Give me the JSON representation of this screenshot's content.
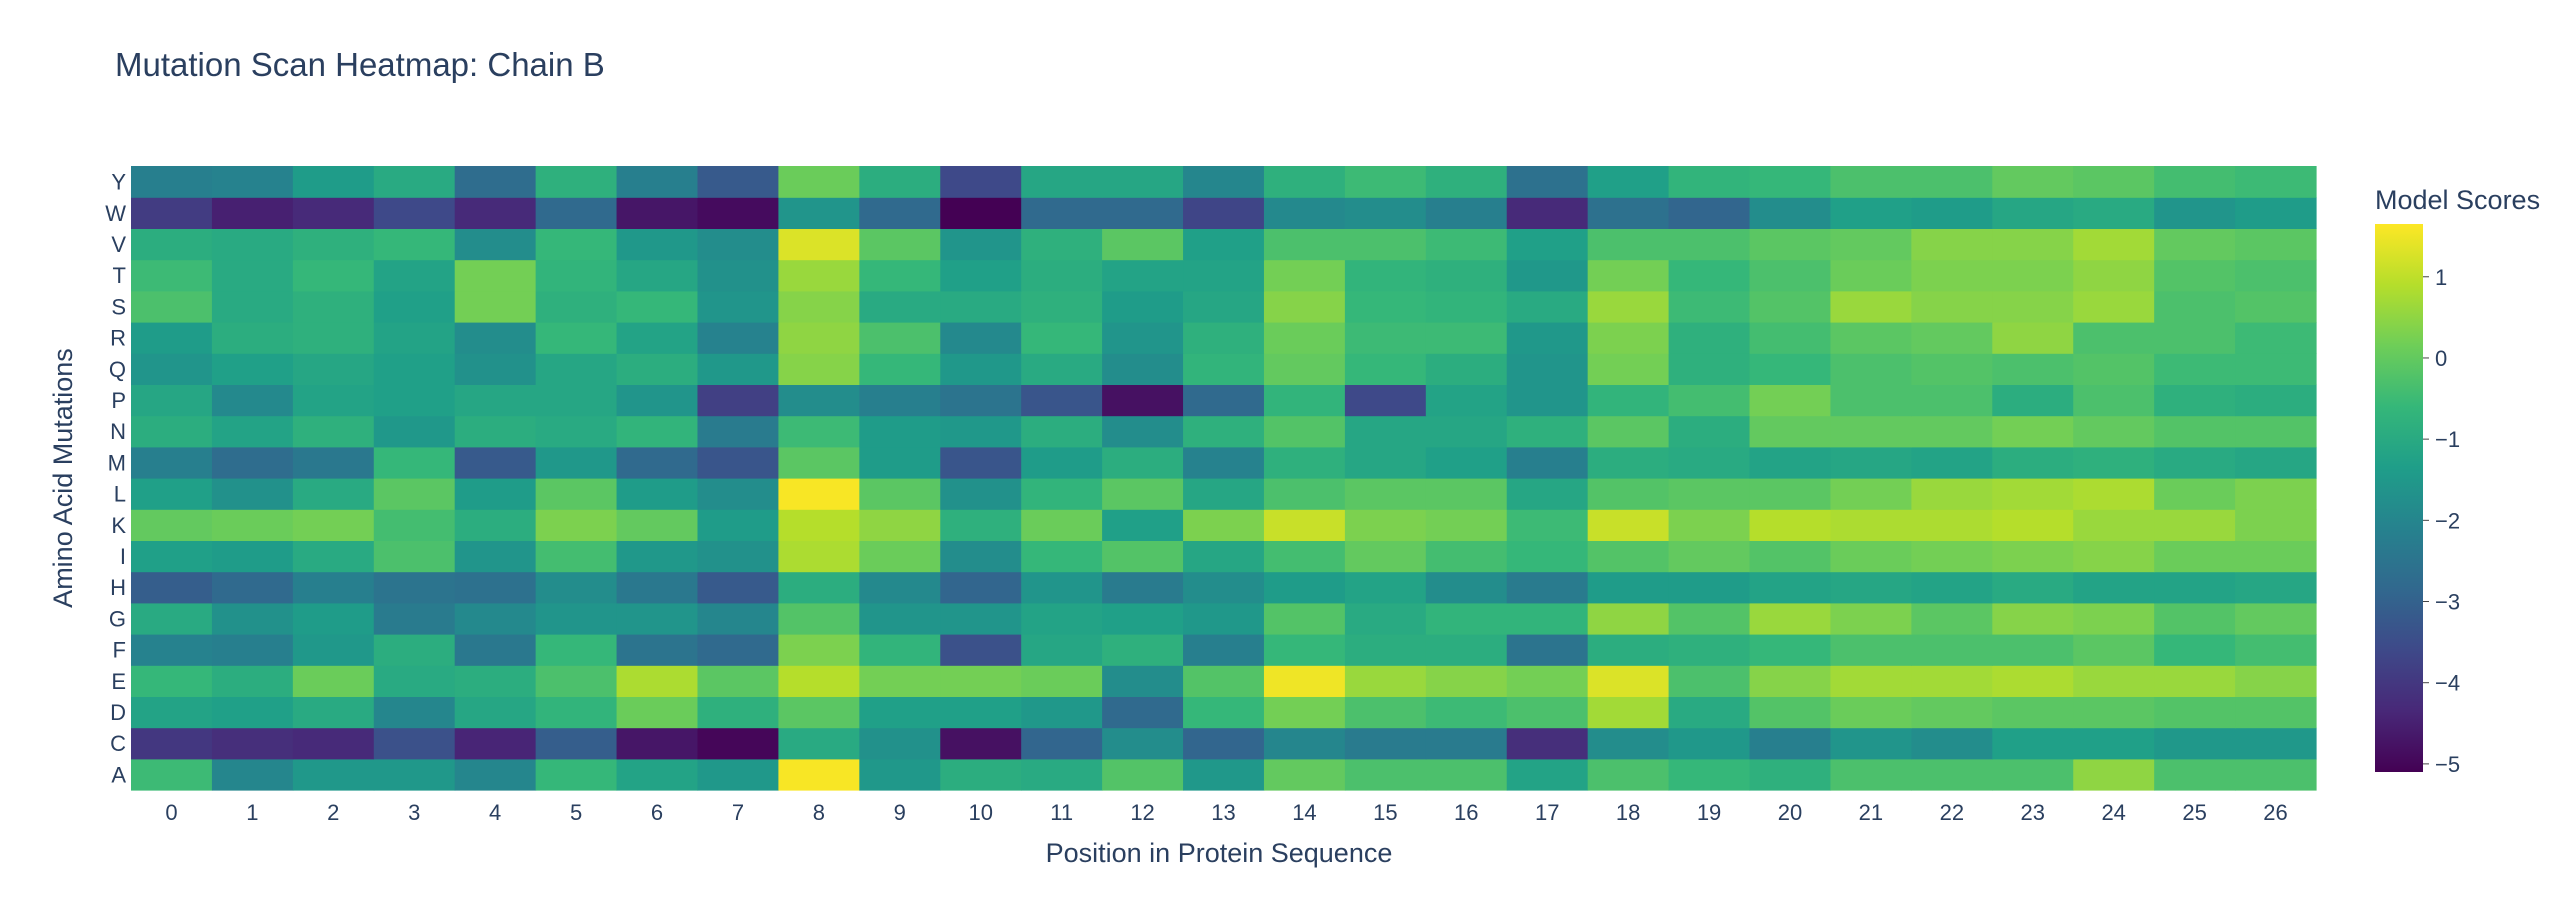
{
  "chart_data": {
    "type": "heatmap",
    "title": "Mutation Scan Heatmap: Chain B",
    "xlabel": "Position in Protein Sequence",
    "ylabel": "Amino Acid Mutations",
    "x": [
      "0",
      "1",
      "2",
      "3",
      "4",
      "5",
      "6",
      "7",
      "8",
      "9",
      "10",
      "11",
      "12",
      "13",
      "14",
      "15",
      "16",
      "17",
      "18",
      "19",
      "20",
      "21",
      "22",
      "23",
      "24",
      "25",
      "26"
    ],
    "y": [
      "A",
      "C",
      "D",
      "E",
      "F",
      "G",
      "H",
      "I",
      "K",
      "L",
      "M",
      "N",
      "P",
      "Q",
      "R",
      "S",
      "T",
      "V",
      "W",
      "Y"
    ],
    "z": [
      [
        -0.5,
        -2.0,
        -1.5,
        -1.5,
        -2.0,
        -0.6,
        -1.2,
        -1.5,
        1.6,
        -1.5,
        -0.9,
        -1.0,
        -0.2,
        -1.5,
        0.0,
        -0.3,
        -0.3,
        -1.2,
        -0.3,
        -0.6,
        -0.8,
        -0.3,
        -0.3,
        -0.3,
        0.5,
        -0.3,
        -0.3
      ],
      [
        -4.0,
        -4.2,
        -4.3,
        -3.4,
        -4.4,
        -3.1,
        -4.7,
        -5.0,
        -1.0,
        -1.7,
        -4.8,
        -2.9,
        -1.8,
        -2.9,
        -2.0,
        -2.3,
        -2.3,
        -4.2,
        -1.8,
        -1.5,
        -2.2,
        -1.6,
        -1.8,
        -1.3,
        -1.3,
        -1.5,
        -1.5
      ],
      [
        -1.2,
        -1.3,
        -1.0,
        -2.0,
        -1.1,
        -0.7,
        0.1,
        -0.8,
        -0.1,
        -1.3,
        -1.3,
        -1.5,
        -2.8,
        -0.6,
        0.2,
        -0.3,
        -0.5,
        -0.3,
        0.7,
        -1.0,
        -0.2,
        0.1,
        0.0,
        -0.1,
        -0.1,
        -0.2,
        -0.2
      ],
      [
        -0.6,
        -0.9,
        0.1,
        -1.0,
        -0.9,
        -0.3,
        0.8,
        -0.1,
        0.9,
        0.2,
        0.2,
        0.1,
        -1.8,
        -0.2,
        1.5,
        0.6,
        0.4,
        0.2,
        1.3,
        -0.3,
        0.4,
        0.7,
        0.7,
        0.8,
        0.6,
        0.6,
        0.4
      ],
      [
        -2.1,
        -2.2,
        -1.5,
        -0.9,
        -2.4,
        -0.6,
        -2.5,
        -2.8,
        0.3,
        -0.7,
        -3.4,
        -1.1,
        -0.8,
        -2.2,
        -0.6,
        -0.9,
        -0.9,
        -2.5,
        -0.9,
        -0.8,
        -0.6,
        -0.3,
        -0.3,
        -0.3,
        -0.1,
        -0.6,
        -0.4
      ],
      [
        -1.0,
        -1.7,
        -1.4,
        -2.3,
        -1.9,
        -1.6,
        -1.6,
        -2.0,
        -0.2,
        -1.6,
        -1.6,
        -1.2,
        -1.3,
        -1.5,
        -0.2,
        -1.0,
        -0.7,
        -0.7,
        0.5,
        -0.2,
        0.6,
        0.3,
        -0.1,
        0.4,
        0.3,
        -0.2,
        0.0
      ],
      [
        -3.1,
        -2.8,
        -2.2,
        -2.5,
        -2.6,
        -1.8,
        -2.4,
        -3.2,
        -0.9,
        -1.9,
        -2.9,
        -1.6,
        -2.3,
        -1.8,
        -1.4,
        -1.2,
        -1.8,
        -2.3,
        -1.4,
        -1.4,
        -1.2,
        -1.1,
        -1.2,
        -1.0,
        -1.2,
        -1.2,
        -1.1
      ],
      [
        -1.3,
        -1.4,
        -1.0,
        -0.3,
        -1.6,
        -0.4,
        -1.5,
        -1.7,
        0.8,
        0.1,
        -1.8,
        -0.6,
        -0.2,
        -1.1,
        -0.4,
        0.0,
        -0.4,
        -0.6,
        -0.2,
        0.0,
        -0.2,
        0.1,
        0.2,
        0.3,
        0.4,
        0.1,
        0.1
      ],
      [
        0.0,
        0.1,
        0.2,
        -0.4,
        -0.9,
        0.3,
        0.0,
        -1.4,
        0.9,
        0.5,
        -0.8,
        0.1,
        -1.3,
        0.3,
        1.1,
        0.3,
        0.2,
        -0.5,
        1.1,
        0.3,
        0.9,
        0.8,
        0.8,
        0.9,
        0.6,
        0.6,
        0.3
      ],
      [
        -1.3,
        -1.7,
        -1.0,
        -0.1,
        -1.4,
        -0.1,
        -1.4,
        -1.8,
        1.6,
        -0.1,
        -1.7,
        -0.7,
        -0.1,
        -1.1,
        -0.3,
        -0.1,
        -0.1,
        -1.1,
        -0.2,
        -0.1,
        -0.1,
        0.2,
        0.6,
        0.7,
        0.8,
        0.1,
        0.3
      ],
      [
        -2.2,
        -2.7,
        -2.4,
        -0.6,
        -3.2,
        -1.5,
        -2.8,
        -3.3,
        -0.1,
        -1.4,
        -3.3,
        -1.4,
        -0.9,
        -2.1,
        -0.8,
        -1.1,
        -1.3,
        -2.2,
        -0.9,
        -1.0,
        -1.2,
        -1.1,
        -1.2,
        -0.9,
        -0.8,
        -1.0,
        -1.1
      ],
      [
        -0.9,
        -1.2,
        -0.8,
        -1.5,
        -0.9,
        -1.0,
        -0.7,
        -2.3,
        -0.5,
        -1.4,
        -1.5,
        -0.9,
        -1.8,
        -0.8,
        -0.2,
        -1.1,
        -1.1,
        -0.8,
        -0.1,
        -0.9,
        0.0,
        0.0,
        0.0,
        0.2,
        0.0,
        -0.2,
        -0.2
      ],
      [
        -1.1,
        -1.9,
        -1.2,
        -1.3,
        -1.1,
        -1.1,
        -1.6,
        -3.8,
        -1.8,
        -2.2,
        -2.5,
        -3.3,
        -4.8,
        -2.8,
        -0.7,
        -3.6,
        -1.2,
        -1.6,
        -0.7,
        -0.4,
        0.2,
        -0.3,
        -0.3,
        -0.9,
        -0.3,
        -0.8,
        -0.9
      ],
      [
        -1.6,
        -1.3,
        -1.1,
        -1.3,
        -1.7,
        -1.1,
        -0.9,
        -1.5,
        0.4,
        -0.6,
        -1.5,
        -1.0,
        -1.8,
        -0.7,
        0.0,
        -0.6,
        -0.9,
        -1.6,
        0.2,
        -0.8,
        -0.6,
        -0.3,
        -0.2,
        -0.3,
        -0.2,
        -0.5,
        -0.5
      ],
      [
        -1.4,
        -0.9,
        -0.8,
        -1.2,
        -1.8,
        -0.6,
        -1.2,
        -2.1,
        0.5,
        -0.3,
        -1.9,
        -0.6,
        -1.6,
        -0.8,
        0.1,
        -0.5,
        -0.5,
        -1.5,
        0.3,
        -0.8,
        -0.4,
        -0.1,
        0.0,
        0.5,
        -0.3,
        -0.3,
        -0.5
      ],
      [
        -0.3,
        -1.0,
        -0.8,
        -1.3,
        0.2,
        -0.8,
        -0.6,
        -1.6,
        0.4,
        -1.0,
        -1.0,
        -0.8,
        -1.4,
        -1.1,
        0.4,
        -0.6,
        -0.7,
        -1.0,
        0.6,
        -0.5,
        -0.2,
        0.6,
        0.4,
        0.4,
        0.6,
        -0.3,
        -0.2
      ],
      [
        -0.5,
        -1.0,
        -0.6,
        -1.2,
        0.2,
        -0.7,
        -1.1,
        -1.7,
        0.6,
        -0.6,
        -1.3,
        -0.9,
        -1.2,
        -1.2,
        0.2,
        -0.7,
        -0.8,
        -1.5,
        0.2,
        -0.6,
        -0.3,
        0.1,
        0.3,
        0.3,
        0.5,
        -0.2,
        -0.3
      ],
      [
        -0.9,
        -1.0,
        -0.8,
        -0.6,
        -1.8,
        -0.6,
        -1.5,
        -1.8,
        1.3,
        -0.1,
        -1.6,
        -0.8,
        -0.1,
        -1.3,
        -0.3,
        -0.3,
        -0.5,
        -1.3,
        -0.3,
        -0.3,
        -0.1,
        0.0,
        0.4,
        0.4,
        0.7,
        0.0,
        -0.1
      ],
      [
        -3.9,
        -4.5,
        -4.3,
        -3.6,
        -4.3,
        -2.8,
        -4.7,
        -4.9,
        -1.6,
        -2.8,
        -5.1,
        -2.8,
        -2.8,
        -3.7,
        -1.9,
        -1.8,
        -2.2,
        -4.3,
        -2.6,
        -2.9,
        -1.8,
        -1.3,
        -1.4,
        -1.1,
        -1.0,
        -1.6,
        -1.4
      ],
      [
        -2.2,
        -2.1,
        -1.4,
        -1.0,
        -2.7,
        -0.8,
        -2.2,
        -3.2,
        0.1,
        -0.9,
        -3.6,
        -1.1,
        -1.1,
        -2.0,
        -0.8,
        -0.5,
        -0.8,
        -2.6,
        -1.3,
        -0.7,
        -0.6,
        -0.3,
        -0.3,
        0.0,
        -0.1,
        -0.4,
        -0.5
      ]
    ],
    "zrange": [
      -5.1,
      1.65
    ],
    "colorscale": "Viridis",
    "colorbar": {
      "title": "Model Scores",
      "ticks": [
        1,
        0,
        -1,
        -2,
        -3,
        -4,
        -5
      ],
      "tick_labels": [
        "1",
        "0",
        "−1",
        "−2",
        "−3",
        "−4",
        "−5"
      ]
    },
    "grid": false
  }
}
